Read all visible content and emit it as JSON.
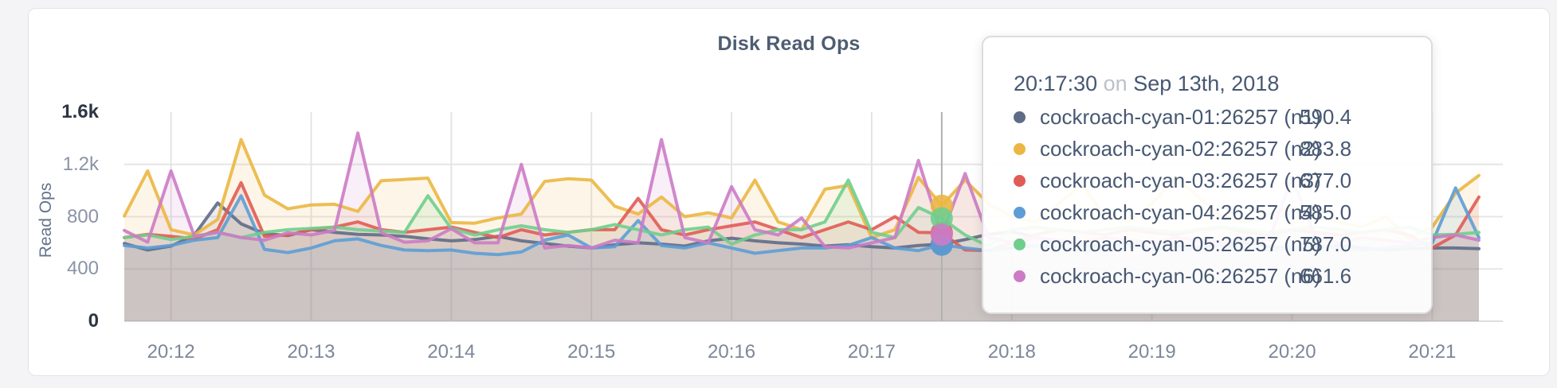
{
  "card": {
    "title": "Disk Read Ops"
  },
  "tooltip": {
    "time": "20:17:30",
    "conjunction": "on",
    "date": "Sep 13th, 2018",
    "rows": [
      {
        "name": "cockroach-cyan-01:26257 (n1)",
        "value": "590.4",
        "color": "#5F6C87"
      },
      {
        "name": "cockroach-cyan-02:26257 (n2)",
        "value": "883.8",
        "color": "#EBB742"
      },
      {
        "name": "cockroach-cyan-03:26257 (n3)",
        "value": "677.0",
        "color": "#E05C55"
      },
      {
        "name": "cockroach-cyan-04:26257 (n4)",
        "value": "585.0",
        "color": "#5C9DD6"
      },
      {
        "name": "cockroach-cyan-05:26257 (n5)",
        "value": "787.0",
        "color": "#70CE8D"
      },
      {
        "name": "cockroach-cyan-06:26257 (n6)",
        "value": "661.6",
        "color": "#CC7BC5"
      }
    ]
  },
  "chart_data": {
    "type": "line",
    "title": "Disk Read Ops",
    "xlabel": "",
    "ylabel": "Read Ops",
    "ylim": [
      0,
      1600
    ],
    "grid": true,
    "x_start_time": "20:11:40",
    "x_interval_seconds": 10,
    "x_end_time": "20:21:20",
    "x_ticks": [
      "20:12",
      "20:13",
      "20:14",
      "20:15",
      "20:16",
      "20:17",
      "20:18",
      "20:19",
      "20:20",
      "20:21"
    ],
    "y_ticks": [
      {
        "label": "0",
        "value": 0,
        "strong": true
      },
      {
        "label": "400",
        "value": 400,
        "strong": false
      },
      {
        "label": "800",
        "value": 800,
        "strong": false
      },
      {
        "label": "1.2k",
        "value": 1200,
        "strong": false
      },
      {
        "label": "1.6k",
        "value": 1600,
        "strong": true
      }
    ],
    "hover": {
      "time": "20:17:30",
      "index": 35
    },
    "series": [
      {
        "name": "cockroach-cyan-01:26257 (n1)",
        "node": "n1",
        "color": "#5F6C87",
        "values": [
          595,
          545,
          575,
          660,
          905,
          745,
          670,
          655,
          700,
          680,
          665,
          660,
          650,
          630,
          615,
          625,
          650,
          615,
          595,
          575,
          560,
          585,
          600,
          590,
          575,
          615,
          635,
          615,
          600,
          590,
          575,
          585,
          570,
          560,
          580,
          590.4,
          625,
          665,
          685,
          645,
          605,
          580,
          570,
          590,
          610,
          580,
          560,
          590,
          600,
          570,
          555,
          565,
          580,
          560,
          545,
          555,
          560,
          560,
          555
        ]
      },
      {
        "name": "cockroach-cyan-02:26257 (n2)",
        "node": "n2",
        "color": "#EBB742",
        "values": [
          805,
          1150,
          700,
          660,
          780,
          1390,
          965,
          860,
          890,
          895,
          840,
          1075,
          1085,
          1095,
          755,
          750,
          790,
          820,
          1070,
          1090,
          1080,
          880,
          820,
          950,
          800,
          830,
          790,
          1080,
          760,
          700,
          1010,
          1040,
          640,
          700,
          1100,
          883.8,
          1080,
          900,
          800,
          760,
          900,
          1050,
          800,
          760,
          900,
          1100,
          950,
          800,
          760,
          820,
          880,
          800,
          760,
          720,
          800,
          640,
          720,
          980,
          1115
        ]
      },
      {
        "name": "cockroach-cyan-03:26257 (n3)",
        "node": "n3",
        "color": "#E05C55",
        "values": [
          640,
          665,
          650,
          630,
          700,
          1060,
          650,
          660,
          700,
          720,
          760,
          700,
          680,
          700,
          720,
          680,
          640,
          700,
          660,
          680,
          700,
          700,
          940,
          700,
          660,
          700,
          730,
          760,
          700,
          640,
          700,
          760,
          700,
          800,
          680,
          677,
          545,
          540,
          600,
          660,
          700,
          680,
          660,
          700,
          680,
          660,
          700,
          720,
          680,
          660,
          700,
          680,
          660,
          680,
          700,
          660,
          560,
          660,
          950
        ]
      },
      {
        "name": "cockroach-cyan-04:26257 (n4)",
        "node": "n4",
        "color": "#5C9DD6",
        "values": [
          580,
          560,
          580,
          620,
          640,
          960,
          550,
          525,
          560,
          615,
          630,
          580,
          545,
          540,
          545,
          520,
          510,
          530,
          620,
          660,
          560,
          570,
          770,
          580,
          560,
          600,
          560,
          520,
          540,
          560,
          560,
          580,
          640,
          560,
          540,
          585,
          560,
          540,
          560,
          580,
          560,
          540,
          560,
          580,
          560,
          540,
          560,
          580,
          560,
          540,
          560,
          580,
          560,
          540,
          560,
          580,
          600,
          1020,
          640
        ]
      },
      {
        "name": "cockroach-cyan-05:26257 (n5)",
        "node": "n5",
        "color": "#70CE8D",
        "values": [
          640,
          660,
          625,
          650,
          680,
          640,
          680,
          700,
          710,
          720,
          700,
          690,
          680,
          960,
          710,
          660,
          700,
          730,
          700,
          680,
          700,
          740,
          700,
          660,
          700,
          720,
          590,
          660,
          700,
          700,
          760,
          1080,
          680,
          640,
          870,
          787,
          660,
          575,
          700,
          720,
          700,
          680,
          700,
          720,
          700,
          680,
          700,
          720,
          700,
          680,
          700,
          720,
          700,
          680,
          700,
          720,
          660,
          665,
          680
        ]
      },
      {
        "name": "cockroach-cyan-06:26257 (n6)",
        "node": "n6",
        "color": "#CC7BC5",
        "values": [
          695,
          605,
          1150,
          650,
          680,
          640,
          620,
          677,
          660,
          695,
          1440,
          677,
          605,
          615,
          708,
          600,
          600,
          1200,
          560,
          580,
          560,
          620,
          600,
          1390,
          640,
          600,
          1030,
          700,
          660,
          790,
          570,
          560,
          600,
          640,
          1230,
          661.6,
          1130,
          640,
          600,
          640,
          620,
          600,
          640,
          620,
          600,
          640,
          620,
          600,
          640,
          620,
          1100,
          640,
          600,
          640,
          620,
          600,
          640,
          660,
          620
        ]
      }
    ]
  }
}
